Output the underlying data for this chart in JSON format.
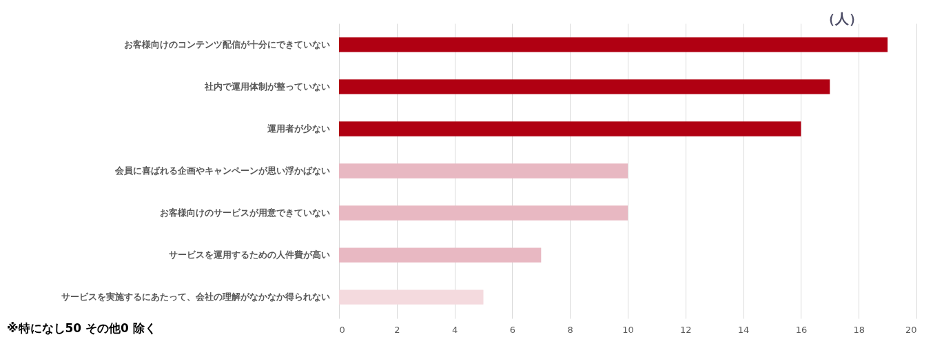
{
  "chart_data": {
    "type": "bar",
    "orientation": "horizontal",
    "xlabel": "（人）",
    "categories": [
      "お客様向けのコンテンツ配信が十分にできていない",
      "社内で運用体制が整っていない",
      "運用者が少ない",
      "会員に喜ばれる企画やキャンペーンが思い浮かばない",
      "お客様向けのサービスが用意できていない",
      "サービスを運用するための人件費が高い",
      "サービスを実施するにあたって、会社の理解がなかなか得られない"
    ],
    "values": [
      19,
      17,
      16,
      10,
      10,
      7,
      5
    ],
    "colors": [
      "#b00012",
      "#b00012",
      "#b00012",
      "#e8b8c2",
      "#e8b8c2",
      "#e8b8c2",
      "#f4dade"
    ],
    "xlim": [
      0,
      20
    ],
    "xticks": [
      0,
      2,
      4,
      6,
      8,
      10,
      12,
      14,
      16,
      18,
      20
    ],
    "grid": "x",
    "annotations": [
      "※特になし50  その他0  除く"
    ]
  }
}
